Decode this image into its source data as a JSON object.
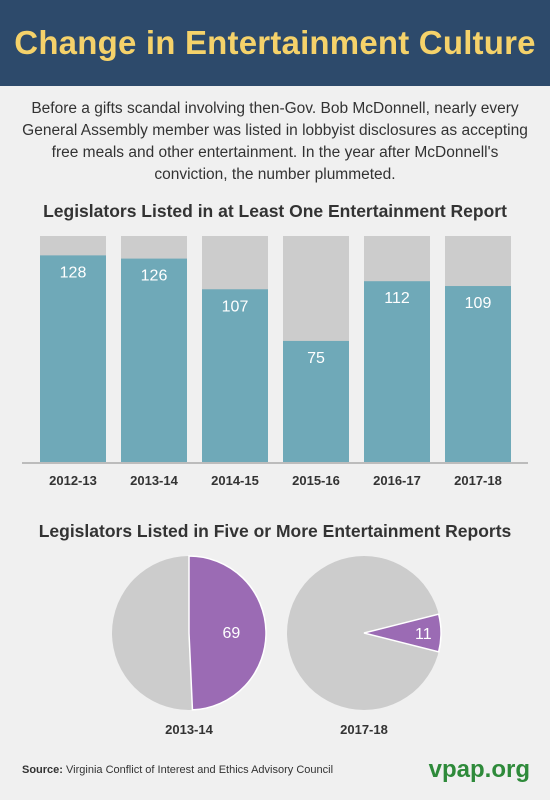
{
  "header": {
    "title": "Change in Entertainment Culture"
  },
  "intro": {
    "text": "Before a gifts scandal involving then-Gov. Bob McDonnell, nearly every General Assembly member was listed in lobbyist disclosures as accepting free meals and other entertainment. In the year after McDonnell's conviction, the number plummeted."
  },
  "chart_data": [
    {
      "type": "bar",
      "title": "Legislators Listed in at Least One Entertainment Report",
      "categories": [
        "2012-13",
        "2013-14",
        "2014-15",
        "2015-16",
        "2016-17",
        "2017-18"
      ],
      "values": [
        128,
        126,
        107,
        75,
        112,
        109
      ],
      "total": 140,
      "colors": {
        "value": "#6fa9b8",
        "remainder": "#cccccc"
      }
    },
    {
      "type": "pie",
      "title": "Legislators Listed in Five or More Entertainment Reports",
      "pies": [
        {
          "label": "2013-14",
          "value": 69,
          "total": 140
        },
        {
          "label": "2017-18",
          "value": 11,
          "total": 140
        }
      ],
      "colors": {
        "value": "#9b6bb4",
        "remainder": "#cccccc"
      }
    }
  ],
  "footer": {
    "source_label": "Source:",
    "source_text": "Virginia Conflict of Interest and Ethics Advisory Council",
    "brand": "vpap.org"
  }
}
